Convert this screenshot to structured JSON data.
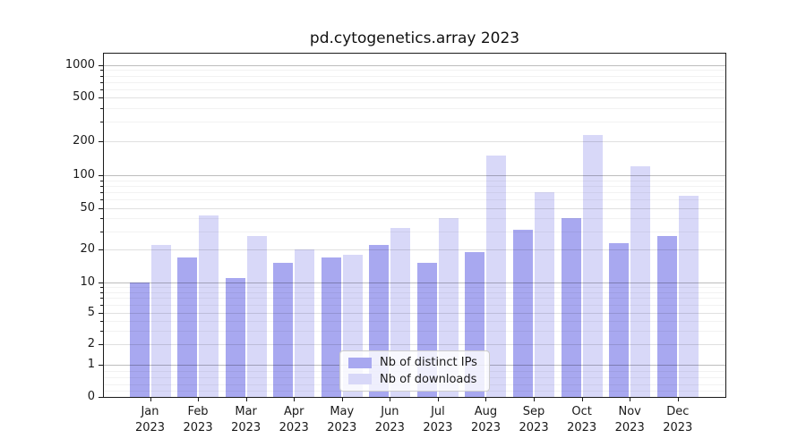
{
  "chart_data": {
    "type": "bar",
    "title": "pd.cytogenetics.array 2023",
    "xlabel": "",
    "ylabel": "",
    "categories": [
      "Jan 2023",
      "Feb 2023",
      "Mar 2023",
      "Apr 2023",
      "May 2023",
      "Jun 2023",
      "Jul 2023",
      "Aug 2023",
      "Sep 2023",
      "Oct 2023",
      "Nov 2023",
      "Dec 2023"
    ],
    "series": [
      {
        "name": "Nb of distinct IPs",
        "color": "#a8a8f0",
        "values": [
          10,
          17,
          11,
          15,
          17,
          22,
          15,
          19,
          31,
          40,
          23,
          27
        ]
      },
      {
        "name": "Nb of downloads",
        "color": "#d8d8f8",
        "values": [
          22,
          43,
          27,
          20,
          18,
          32,
          40,
          150,
          70,
          230,
          120,
          65
        ]
      }
    ],
    "yscale": "symlog",
    "yticks": [
      0,
      1,
      2,
      5,
      10,
      20,
      50,
      100,
      200,
      500,
      1000
    ],
    "ylim": [
      0,
      1300
    ],
    "grid": true,
    "legend": {
      "position": "lower center",
      "entries": [
        "Nb of distinct IPs",
        "Nb of downloads"
      ]
    }
  }
}
